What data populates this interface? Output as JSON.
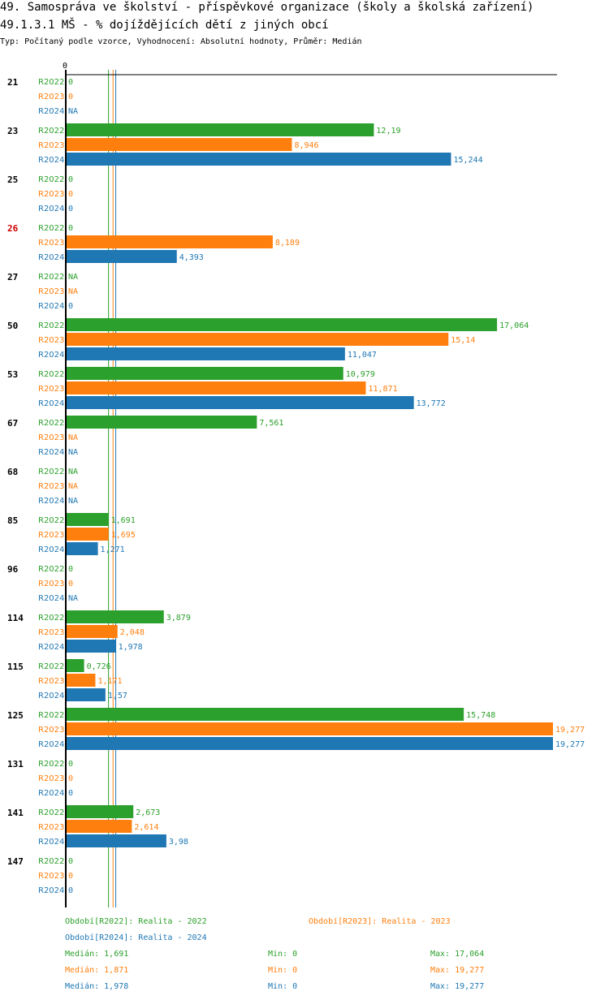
{
  "title": "49. Samospráva ve školství - příspěvkové organizace (školy a školská zařízení)",
  "subtitle": "49.1.3.1 MŠ - % dojíždějících dětí z jiných obcí",
  "type_line": "Typ: Počítaný podle vzorce, Vyhodnocení: Absolutní hodnoty, Průměr: Medián",
  "colors": {
    "R2022": "#2ca02c",
    "R2023": "#ff7f0e",
    "R2024": "#1f77b4",
    "highlight": "#cc0000",
    "axis": "#000000"
  },
  "chart_data": {
    "type": "bar",
    "orientation": "horizontal",
    "xlim": [
      0,
      19.277
    ],
    "x_tick_label": "0",
    "series_names": [
      "R2022",
      "R2023",
      "R2024"
    ],
    "groups": [
      {
        "label": "21",
        "highlight": false,
        "values": [
          0,
          0,
          null
        ],
        "labels": [
          "0",
          "0",
          "NA"
        ]
      },
      {
        "label": "23",
        "highlight": false,
        "values": [
          12.19,
          8.946,
          15.244
        ],
        "labels": [
          "12,19",
          "8,946",
          "15,244"
        ]
      },
      {
        "label": "25",
        "highlight": false,
        "values": [
          0,
          0,
          0
        ],
        "labels": [
          "0",
          "0",
          "0"
        ]
      },
      {
        "label": "26",
        "highlight": true,
        "values": [
          0,
          8.189,
          4.393
        ],
        "labels": [
          "0",
          "8,189",
          "4,393"
        ]
      },
      {
        "label": "27",
        "highlight": false,
        "values": [
          null,
          null,
          0
        ],
        "labels": [
          "NA",
          "NA",
          "0"
        ]
      },
      {
        "label": "50",
        "highlight": false,
        "values": [
          17.064,
          15.14,
          11.047
        ],
        "labels": [
          "17,064",
          "15,14",
          "11,047"
        ]
      },
      {
        "label": "53",
        "highlight": false,
        "values": [
          10.979,
          11.871,
          13.772
        ],
        "labels": [
          "10,979",
          "11,871",
          "13,772"
        ]
      },
      {
        "label": "67",
        "highlight": false,
        "values": [
          7.561,
          null,
          null
        ],
        "labels": [
          "7,561",
          "NA",
          "NA"
        ]
      },
      {
        "label": "68",
        "highlight": false,
        "values": [
          null,
          null,
          null
        ],
        "labels": [
          "NA",
          "NA",
          "NA"
        ]
      },
      {
        "label": "85",
        "highlight": false,
        "values": [
          1.691,
          1.695,
          1.271
        ],
        "labels": [
          "1,691",
          "1,695",
          "1,271"
        ]
      },
      {
        "label": "96",
        "highlight": false,
        "values": [
          0,
          0,
          null
        ],
        "labels": [
          "0",
          "0",
          "NA"
        ]
      },
      {
        "label": "114",
        "highlight": false,
        "values": [
          3.879,
          2.048,
          1.978
        ],
        "labels": [
          "3,879",
          "2,048",
          "1,978"
        ]
      },
      {
        "label": "115",
        "highlight": false,
        "values": [
          0.726,
          1.171,
          1.57
        ],
        "labels": [
          "0,726",
          "1,171",
          "1,57"
        ]
      },
      {
        "label": "125",
        "highlight": false,
        "values": [
          15.748,
          19.277,
          19.277
        ],
        "labels": [
          "15,748",
          "19,277",
          "19,277"
        ]
      },
      {
        "label": "131",
        "highlight": false,
        "values": [
          0,
          0,
          0
        ],
        "labels": [
          "0",
          "0",
          "0"
        ]
      },
      {
        "label": "141",
        "highlight": false,
        "values": [
          2.673,
          2.614,
          3.98
        ],
        "labels": [
          "2,673",
          "2,614",
          "3,98"
        ]
      },
      {
        "label": "147",
        "highlight": false,
        "values": [
          0,
          0,
          0
        ],
        "labels": [
          "0",
          "0",
          "0"
        ]
      }
    ],
    "medians": [
      1.691,
      1.871,
      1.978
    ]
  },
  "legend": {
    "items": [
      {
        "series": "R2022",
        "text": "Období[R2022]: Realita - 2022"
      },
      {
        "series": "R2023",
        "text": "Období[R2023]: Realita - 2023"
      },
      {
        "series": "R2024",
        "text": "Období[R2024]: Realita - 2024"
      }
    ],
    "stats": [
      {
        "series": "R2022",
        "median": "Medián: 1,691",
        "min": "Min: 0",
        "max": "Max: 17,064"
      },
      {
        "series": "R2023",
        "median": "Medián: 1,871",
        "min": "Min: 0",
        "max": "Max: 19,277"
      },
      {
        "series": "R2024",
        "median": "Medián: 1,978",
        "min": "Min: 0",
        "max": "Max: 19,277"
      }
    ]
  }
}
